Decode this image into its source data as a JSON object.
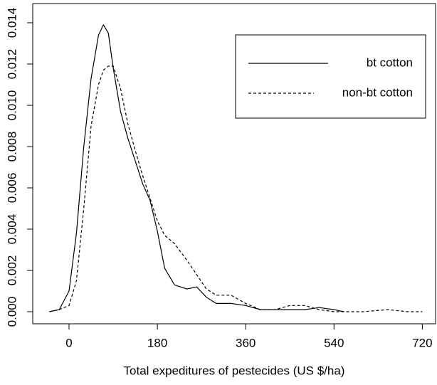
{
  "chart_data": {
    "type": "line",
    "xlabel": "Total expeditures of pestecides (US $/ha)",
    "x": [
      -40,
      -20,
      0,
      15,
      30,
      45,
      60,
      70,
      80,
      90,
      105,
      120,
      135,
      150,
      165,
      180,
      195,
      215,
      240,
      260,
      280,
      300,
      330,
      360,
      390,
      420,
      450,
      480,
      510,
      540,
      560,
      600,
      650,
      690,
      720
    ],
    "series": [
      {
        "name": "bt cotton",
        "color": "#000000",
        "dash": false,
        "values": [
          0,
          0.0001,
          0.001,
          0.0038,
          0.008,
          0.0113,
          0.0134,
          0.0139,
          0.0135,
          0.0118,
          0.0097,
          0.0084,
          0.0073,
          0.0062,
          0.0054,
          0.0039,
          0.0021,
          0.0013,
          0.0011,
          0.0012,
          0.0007,
          0.0004,
          0.0004,
          0.0003,
          0.0001,
          0.0001,
          0.0001,
          0.0001,
          0.0002,
          0.0001,
          0,
          null,
          null,
          null,
          null
        ]
      },
      {
        "name": "non-bt cotton",
        "color": "#000000",
        "dash": true,
        "values": [
          0,
          0.0001,
          0.0003,
          0.0015,
          0.005,
          0.009,
          0.011,
          0.0117,
          0.0119,
          0.0119,
          0.0108,
          0.0091,
          0.0078,
          0.0066,
          0.0055,
          0.0044,
          0.0037,
          0.0033,
          0.0025,
          0.0018,
          0.0011,
          0.0008,
          0.0008,
          0.0004,
          0.0001,
          0.0001,
          0.0003,
          0.0003,
          0.0001,
          0,
          0,
          0,
          0.0001,
          0,
          0
        ]
      }
    ],
    "xlim": [
      -74,
      747
    ],
    "xticks": [
      0,
      180,
      360,
      540,
      720
    ],
    "ylim": [
      -0.000586,
      0.01493
    ],
    "yticks": [
      {
        "value": 0,
        "label": "0.000"
      },
      {
        "value": 0.002,
        "label": "0.002"
      },
      {
        "value": 0.004,
        "label": "0.004"
      },
      {
        "value": 0.006,
        "label": "0.006"
      },
      {
        "value": 0.008,
        "label": "0.008"
      },
      {
        "value": 0.01,
        "label": "0.010"
      },
      {
        "value": 0.012,
        "label": "0.012"
      },
      {
        "value": 0.014,
        "label": "0.014"
      }
    ],
    "legend": "top-right"
  }
}
